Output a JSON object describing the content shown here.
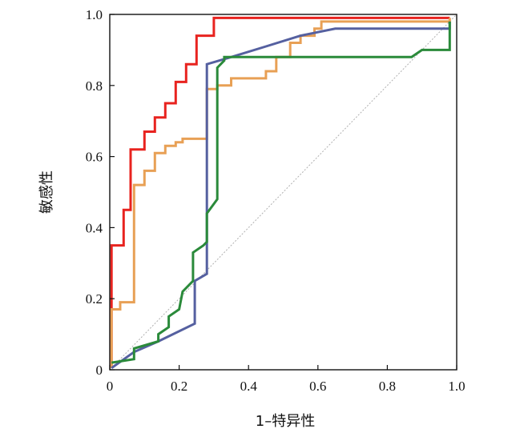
{
  "chart_data": {
    "type": "line",
    "title": "",
    "xlabel": "1–特异性",
    "ylabel": "敏感性",
    "xlim": [
      0,
      1.0
    ],
    "ylim": [
      0,
      1.0
    ],
    "xticks": [
      "0",
      "0.2",
      "0.4",
      "0.6",
      "0.8",
      "1.0"
    ],
    "yticks": [
      "0",
      "0.2",
      "0.4",
      "0.6",
      "0.8",
      "1.0"
    ],
    "grid": false,
    "legend": "none",
    "reference_line": {
      "x": [
        0,
        1.0
      ],
      "y": [
        0,
        1.0
      ],
      "color": "#b0b0b0",
      "style": "dotted"
    },
    "series": [
      {
        "color": "#e8231f",
        "x": [
          0.005,
          0.005,
          0.04,
          0.04,
          0.06,
          0.06,
          0.1,
          0.1,
          0.13,
          0.13,
          0.16,
          0.16,
          0.19,
          0.19,
          0.22,
          0.22,
          0.25,
          0.25,
          0.3,
          0.3,
          0.5,
          0.98,
          0.98
        ],
        "y": [
          0.005,
          0.35,
          0.35,
          0.45,
          0.45,
          0.62,
          0.62,
          0.67,
          0.67,
          0.71,
          0.71,
          0.75,
          0.75,
          0.81,
          0.81,
          0.86,
          0.86,
          0.94,
          0.94,
          0.99,
          0.99,
          0.99,
          0.99
        ]
      },
      {
        "color": "#e8a055",
        "x": [
          0.005,
          0.005,
          0.03,
          0.03,
          0.07,
          0.07,
          0.1,
          0.1,
          0.13,
          0.13,
          0.16,
          0.16,
          0.19,
          0.19,
          0.21,
          0.21,
          0.28,
          0.28,
          0.31,
          0.31,
          0.35,
          0.35,
          0.45,
          0.45,
          0.48,
          0.48,
          0.52,
          0.52,
          0.55,
          0.55,
          0.59,
          0.59,
          0.61,
          0.61,
          0.98,
          0.98
        ],
        "y": [
          0.005,
          0.17,
          0.17,
          0.19,
          0.19,
          0.52,
          0.52,
          0.56,
          0.56,
          0.61,
          0.61,
          0.63,
          0.63,
          0.64,
          0.64,
          0.65,
          0.65,
          0.79,
          0.79,
          0.8,
          0.8,
          0.82,
          0.82,
          0.84,
          0.84,
          0.88,
          0.88,
          0.92,
          0.92,
          0.94,
          0.94,
          0.96,
          0.96,
          0.98,
          0.98,
          0.99
        ]
      },
      {
        "color": "#5560a0",
        "x": [
          0.005,
          0.07,
          0.14,
          0.245,
          0.245,
          0.28,
          0.28,
          0.35,
          0.45,
          0.55,
          0.65,
          0.98,
          0.98
        ],
        "y": [
          0.005,
          0.05,
          0.08,
          0.13,
          0.25,
          0.27,
          0.86,
          0.88,
          0.91,
          0.94,
          0.96,
          0.96,
          0.98
        ]
      },
      {
        "color": "#2a8a3a",
        "x": [
          0.005,
          0.07,
          0.07,
          0.14,
          0.14,
          0.17,
          0.17,
          0.2,
          0.21,
          0.24,
          0.24,
          0.27,
          0.28,
          0.28,
          0.31,
          0.31,
          0.33,
          0.33,
          0.36,
          0.36,
          0.87,
          0.9,
          0.9,
          0.98,
          0.98
        ],
        "y": [
          0.02,
          0.03,
          0.06,
          0.08,
          0.1,
          0.12,
          0.15,
          0.17,
          0.22,
          0.25,
          0.33,
          0.35,
          0.36,
          0.44,
          0.48,
          0.85,
          0.87,
          0.88,
          0.88,
          0.88,
          0.88,
          0.9,
          0.9,
          0.9,
          0.98
        ]
      }
    ]
  }
}
